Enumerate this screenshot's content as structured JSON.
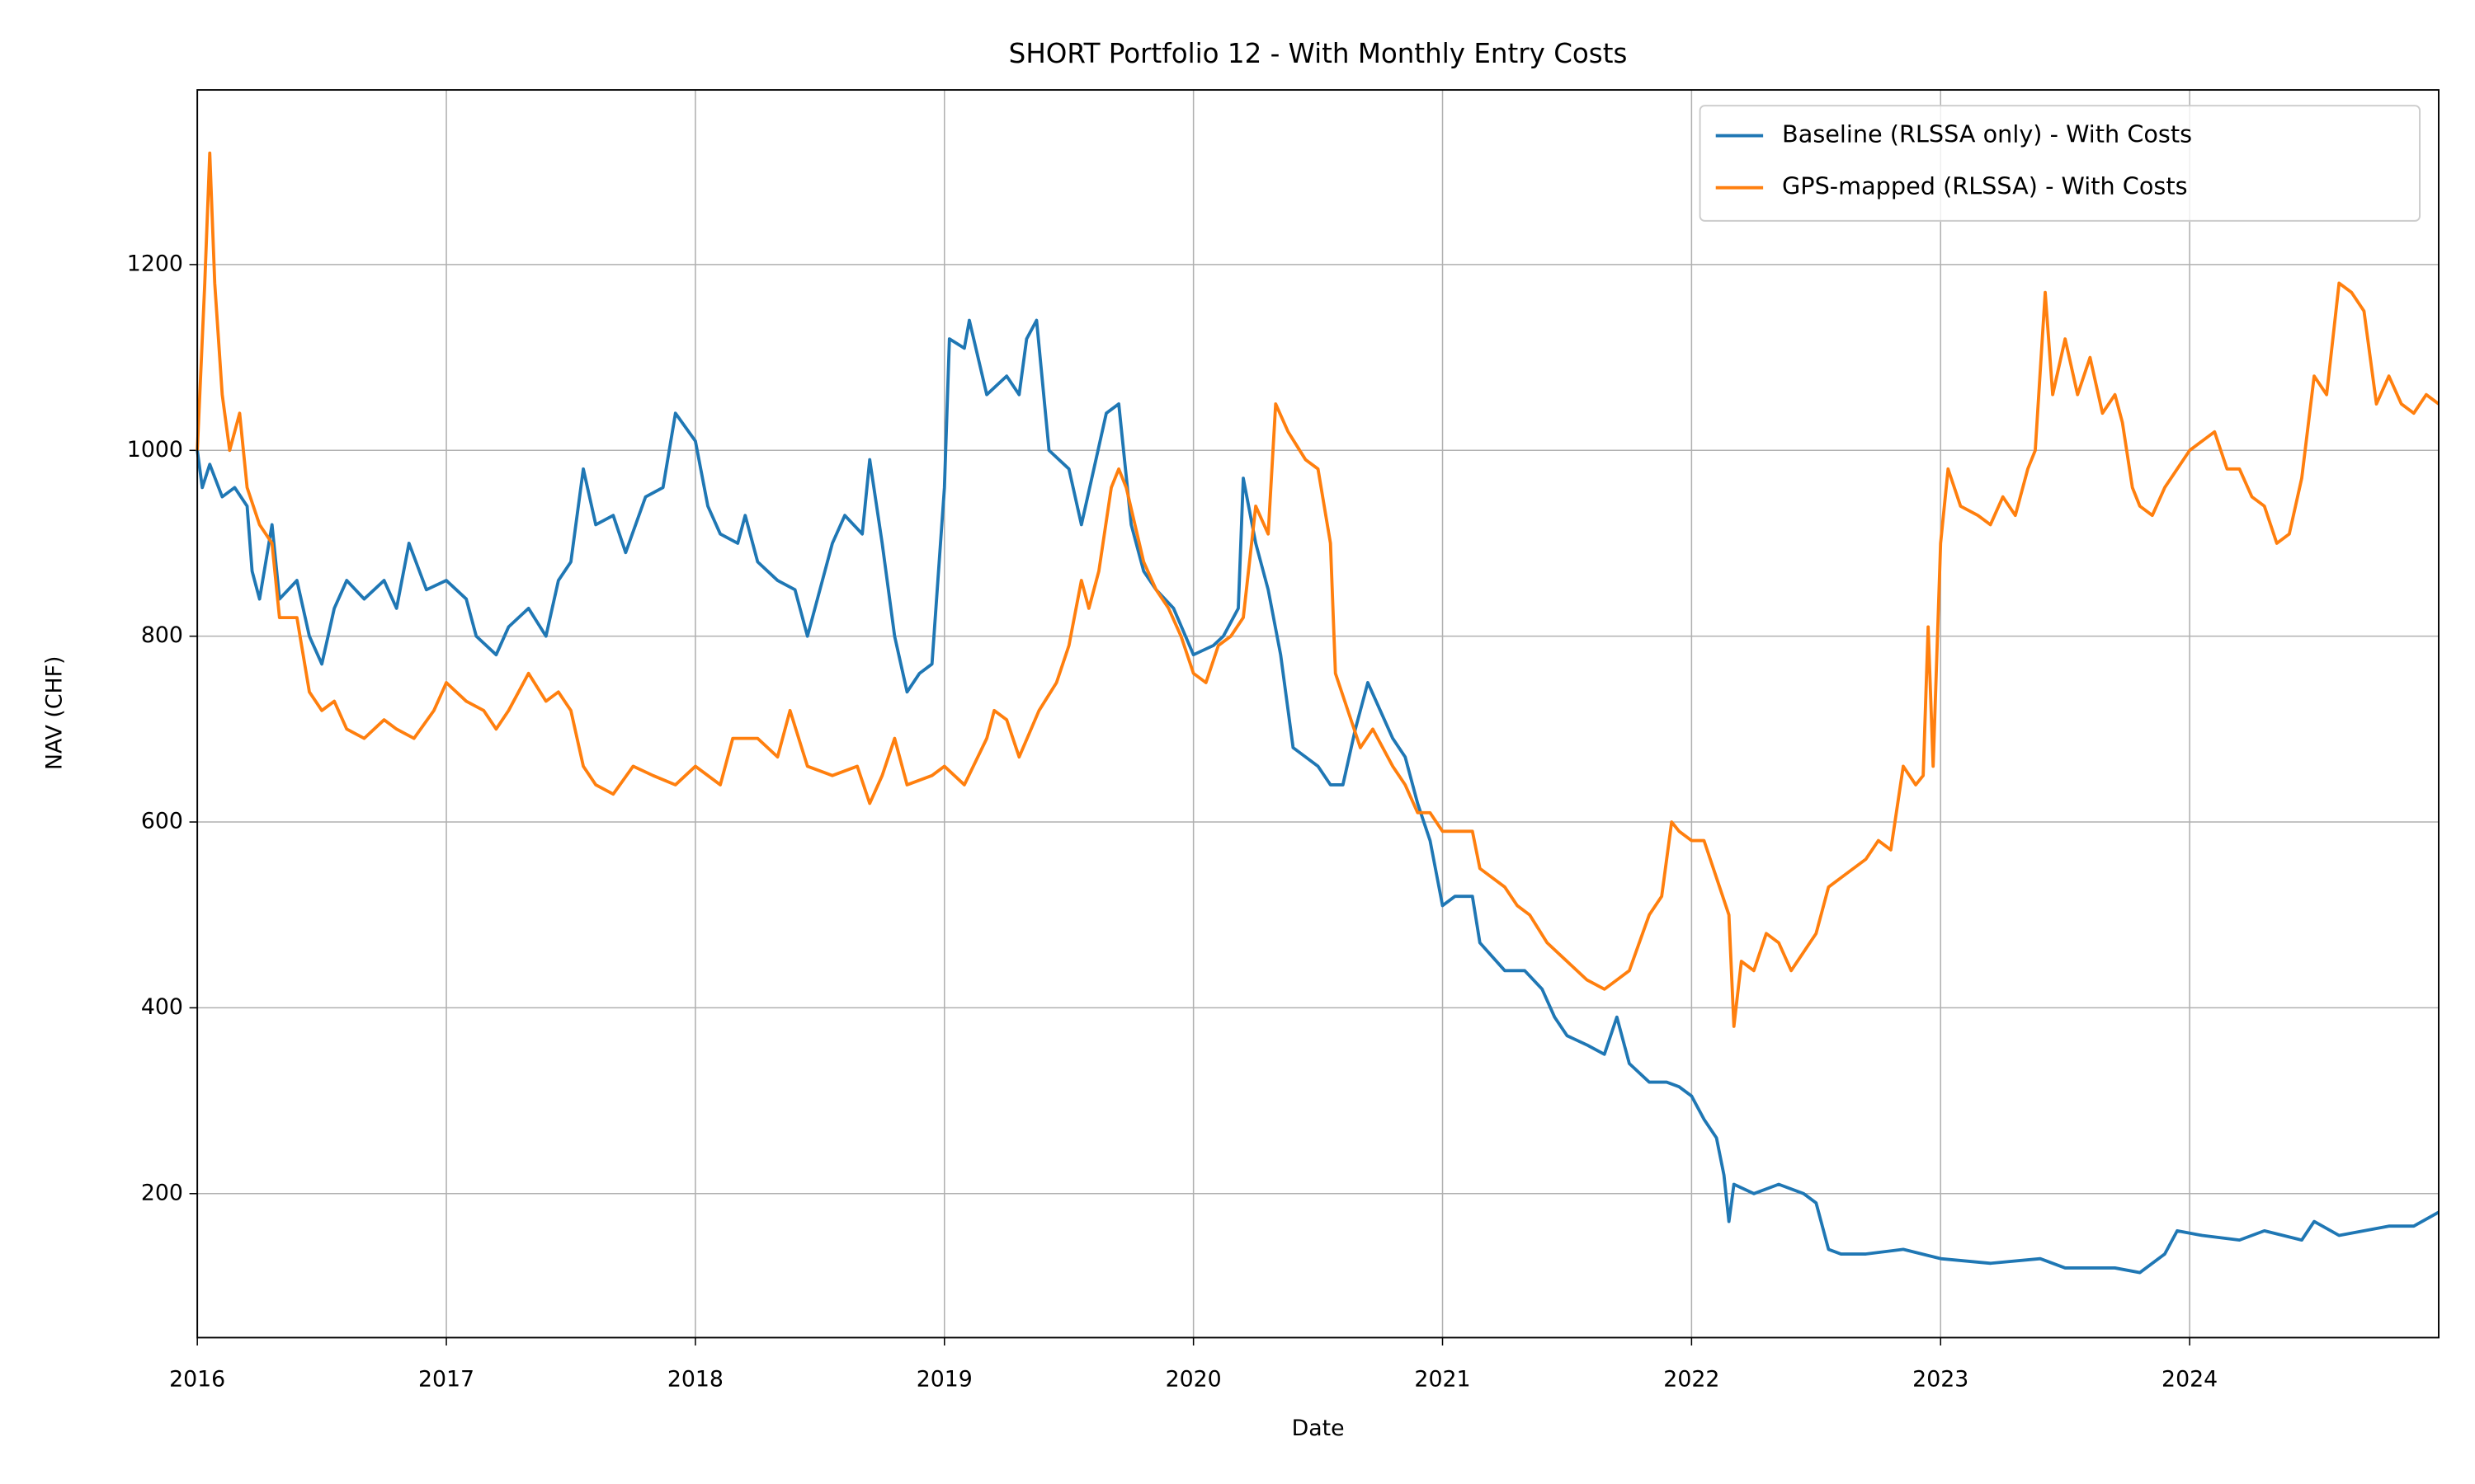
{
  "chart_data": {
    "type": "line",
    "title": "SHORT Portfolio 12 - With Monthly Entry Costs",
    "x_label": "Date",
    "y_label": "NAV (CHF)",
    "xlim": [
      2016,
      2025
    ],
    "xticks": [
      2016,
      2017,
      2018,
      2019,
      2020,
      2021,
      2022,
      2023,
      2024
    ],
    "ylim": [
      45,
      1388
    ],
    "yticks": [
      200,
      400,
      600,
      800,
      1000,
      1200
    ],
    "grid": true,
    "legend": "upper right",
    "series": [
      {
        "name": "Baseline (RLSSA only) - With Costs",
        "color": "#1f77b4",
        "x": [
          2016.0,
          2016.02,
          2016.05,
          2016.1,
          2016.15,
          2016.2,
          2016.22,
          2016.25,
          2016.3,
          2016.33,
          2016.4,
          2016.45,
          2016.5,
          2016.55,
          2016.6,
          2016.67,
          2016.75,
          2016.8,
          2016.85,
          2016.92,
          2017.0,
          2017.08,
          2017.12,
          2017.2,
          2017.25,
          2017.33,
          2017.4,
          2017.45,
          2017.5,
          2017.55,
          2017.6,
          2017.67,
          2017.72,
          2017.8,
          2017.87,
          2017.92,
          2018.0,
          2018.05,
          2018.1,
          2018.17,
          2018.2,
          2018.25,
          2018.33,
          2018.4,
          2018.45,
          2018.5,
          2018.55,
          2018.6,
          2018.67,
          2018.7,
          2018.75,
          2018.8,
          2018.85,
          2018.9,
          2018.95,
          2019.0,
          2019.02,
          2019.08,
          2019.1,
          2019.17,
          2019.25,
          2019.3,
          2019.33,
          2019.37,
          2019.42,
          2019.5,
          2019.55,
          2019.6,
          2019.65,
          2019.7,
          2019.75,
          2019.8,
          2019.85,
          2019.92,
          2020.0,
          2020.08,
          2020.12,
          2020.18,
          2020.2,
          2020.25,
          2020.3,
          2020.35,
          2020.4,
          2020.45,
          2020.5,
          2020.55,
          2020.6,
          2020.65,
          2020.7,
          2020.75,
          2020.8,
          2020.85,
          2020.9,
          2020.95,
          2021.0,
          2021.05,
          2021.12,
          2021.15,
          2021.25,
          2021.33,
          2021.4,
          2021.45,
          2021.5,
          2021.58,
          2021.65,
          2021.7,
          2021.75,
          2021.83,
          2021.9,
          2021.95,
          2022.0,
          2022.05,
          2022.1,
          2022.13,
          2022.15,
          2022.17,
          2022.25,
          2022.35,
          2022.45,
          2022.5,
          2022.55,
          2022.6,
          2022.7,
          2022.85,
          2023.0,
          2023.2,
          2023.4,
          2023.5,
          2023.6,
          2023.7,
          2023.8,
          2023.9,
          2023.95,
          2024.05,
          2024.2,
          2024.3,
          2024.45,
          2024.5,
          2024.6,
          2024.7,
          2024.8,
          2024.9,
          2025.0
        ],
        "values": [
          1000,
          960,
          985,
          950,
          960,
          940,
          870,
          840,
          920,
          840,
          860,
          800,
          770,
          830,
          860,
          840,
          860,
          830,
          900,
          850,
          860,
          840,
          800,
          780,
          810,
          830,
          800,
          860,
          880,
          980,
          920,
          930,
          890,
          950,
          960,
          1040,
          1010,
          940,
          910,
          900,
          930,
          880,
          860,
          850,
          800,
          850,
          900,
          930,
          910,
          990,
          900,
          800,
          740,
          760,
          770,
          960,
          1120,
          1110,
          1140,
          1060,
          1080,
          1060,
          1120,
          1140,
          1000,
          980,
          920,
          980,
          1040,
          1050,
          920,
          870,
          850,
          830,
          780,
          790,
          800,
          830,
          970,
          900,
          850,
          780,
          680,
          670,
          660,
          640,
          640,
          700,
          750,
          720,
          690,
          670,
          620,
          580,
          510,
          520,
          520,
          470,
          440,
          440,
          420,
          390,
          370,
          360,
          350,
          390,
          340,
          320,
          320,
          315,
          305,
          280,
          260,
          220,
          170,
          210,
          200,
          210,
          200,
          190,
          140,
          135,
          135,
          140,
          130,
          125,
          130,
          120,
          120,
          120,
          115,
          135,
          160,
          155,
          150,
          160,
          150,
          170,
          155,
          160,
          165,
          165,
          180
        ]
      },
      {
        "name": "GPS-mapped (RLSSA) - With Costs",
        "color": "#ff7f0e",
        "x": [
          2016.0,
          2016.03,
          2016.05,
          2016.07,
          2016.1,
          2016.13,
          2016.17,
          2016.2,
          2016.25,
          2016.3,
          2016.33,
          2016.4,
          2016.45,
          2016.5,
          2016.55,
          2016.6,
          2016.67,
          2016.75,
          2016.8,
          2016.87,
          2016.95,
          2017.0,
          2017.08,
          2017.15,
          2017.2,
          2017.25,
          2017.33,
          2017.4,
          2017.45,
          2017.5,
          2017.55,
          2017.6,
          2017.67,
          2017.75,
          2017.83,
          2017.92,
          2018.0,
          2018.1,
          2018.15,
          2018.25,
          2018.33,
          2018.38,
          2018.45,
          2018.55,
          2018.65,
          2018.7,
          2018.75,
          2018.8,
          2018.85,
          2018.95,
          2019.0,
          2019.08,
          2019.17,
          2019.2,
          2019.25,
          2019.3,
          2019.38,
          2019.45,
          2019.5,
          2019.55,
          2019.58,
          2019.62,
          2019.67,
          2019.7,
          2019.73,
          2019.8,
          2019.85,
          2019.9,
          2019.95,
          2020.0,
          2020.05,
          2020.1,
          2020.15,
          2020.2,
          2020.25,
          2020.3,
          2020.33,
          2020.38,
          2020.45,
          2020.5,
          2020.55,
          2020.57,
          2020.62,
          2020.67,
          2020.72,
          2020.8,
          2020.85,
          2020.9,
          2020.95,
          2021.0,
          2021.05,
          2021.12,
          2021.15,
          2021.25,
          2021.3,
          2021.35,
          2021.42,
          2021.5,
          2021.58,
          2021.65,
          2021.7,
          2021.75,
          2021.83,
          2021.88,
          2021.92,
          2021.95,
          2022.0,
          2022.05,
          2022.1,
          2022.15,
          2022.17,
          2022.2,
          2022.25,
          2022.3,
          2022.35,
          2022.4,
          2022.45,
          2022.5,
          2022.55,
          2022.6,
          2022.7,
          2022.75,
          2022.8,
          2022.85,
          2022.9,
          2022.93,
          2022.95,
          2022.97,
          2023.0,
          2023.03,
          2023.08,
          2023.15,
          2023.2,
          2023.25,
          2023.3,
          2023.35,
          2023.38,
          2023.42,
          2023.45,
          2023.5,
          2023.55,
          2023.6,
          2023.65,
          2023.7,
          2023.73,
          2023.77,
          2023.8,
          2023.85,
          2023.9,
          2023.95,
          2024.0,
          2024.05,
          2024.1,
          2024.15,
          2024.2,
          2024.25,
          2024.3,
          2024.35,
          2024.4,
          2024.45,
          2024.5,
          2024.55,
          2024.6,
          2024.65,
          2024.7,
          2024.75,
          2024.8,
          2024.85,
          2024.9,
          2024.95,
          2025.0
        ],
        "values": [
          1000,
          1180,
          1320,
          1180,
          1060,
          1000,
          1040,
          960,
          920,
          900,
          820,
          820,
          740,
          720,
          730,
          700,
          690,
          710,
          700,
          690,
          720,
          750,
          730,
          720,
          700,
          720,
          760,
          730,
          740,
          720,
          660,
          640,
          630,
          660,
          650,
          640,
          660,
          640,
          690,
          690,
          670,
          720,
          660,
          650,
          660,
          620,
          650,
          690,
          640,
          650,
          660,
          640,
          690,
          720,
          710,
          670,
          720,
          750,
          790,
          860,
          830,
          870,
          960,
          980,
          960,
          880,
          850,
          830,
          800,
          760,
          750,
          790,
          800,
          820,
          940,
          910,
          1050,
          1020,
          990,
          980,
          900,
          760,
          720,
          680,
          700,
          660,
          640,
          610,
          610,
          590,
          590,
          590,
          550,
          530,
          510,
          500,
          470,
          450,
          430,
          420,
          430,
          440,
          500,
          520,
          600,
          590,
          580,
          580,
          540,
          500,
          380,
          450,
          440,
          480,
          470,
          440,
          460,
          480,
          530,
          540,
          560,
          580,
          570,
          660,
          640,
          650,
          810,
          660,
          900,
          980,
          940,
          930,
          920,
          950,
          930,
          980,
          1000,
          1170,
          1060,
          1120,
          1060,
          1100,
          1040,
          1060,
          1030,
          960,
          940,
          930,
          960,
          980,
          1000,
          1010,
          1020,
          980,
          980,
          950,
          940,
          900,
          910,
          970,
          1080,
          1060,
          1180,
          1170,
          1150,
          1050,
          1080,
          1050,
          1040,
          1060,
          1050
        ]
      }
    ]
  }
}
